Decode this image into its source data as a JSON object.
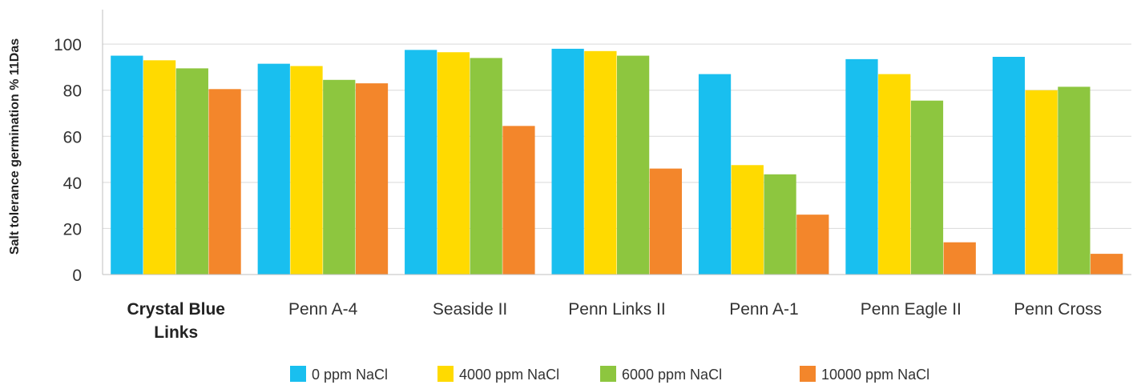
{
  "chart_data": {
    "type": "bar",
    "title": "",
    "xlabel": "",
    "ylabel": "Salt tolerance germination % 11Das",
    "ylim": [
      0,
      115
    ],
    "yticks": [
      0,
      20,
      40,
      60,
      80,
      100
    ],
    "grid": true,
    "legend_position": "bottom",
    "categories": [
      "Crystal Blue Links",
      "Penn A-4",
      "Seaside II",
      "Penn Links II",
      "Penn A-1",
      "Penn Eagle II",
      "Penn Cross"
    ],
    "highlighted_category": "Crystal Blue Links",
    "series": [
      {
        "name": "0 ppm NaCl",
        "color": "#19BFEF",
        "values": [
          95,
          91.5,
          97.5,
          98,
          87,
          93.5,
          94.5
        ]
      },
      {
        "name": "4000 ppm NaCl",
        "color": "#FFDA00",
        "values": [
          93,
          90.5,
          96.5,
          97,
          47.5,
          87,
          80
        ]
      },
      {
        "name": "6000 ppm NaCl",
        "color": "#8DC63F",
        "values": [
          89.5,
          84.5,
          94,
          95,
          43.5,
          75.5,
          81.5
        ]
      },
      {
        "name": "10000 ppm NaCl",
        "color": "#F3862B",
        "values": [
          80.5,
          83,
          64.5,
          46,
          26,
          14,
          9
        ]
      }
    ]
  }
}
